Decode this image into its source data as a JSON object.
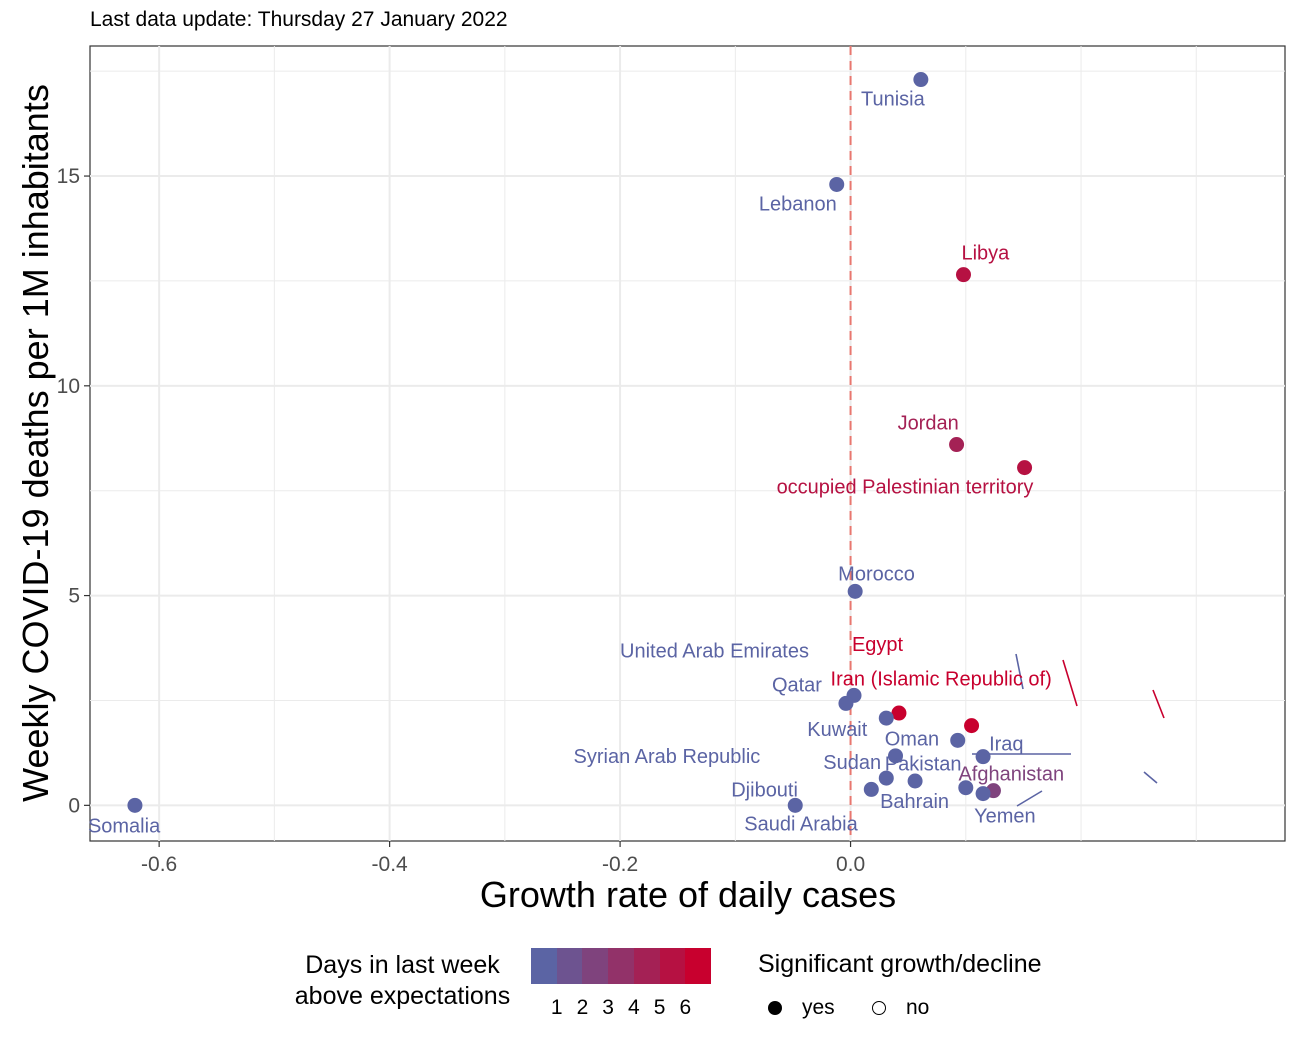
{
  "subtitle": "Last data update: Thursday 27 January 2022",
  "chart_data": {
    "type": "scatter",
    "xlabel": "Growth rate of daily cases",
    "ylabel": "Weekly COVID-19 deaths per 1M inhabitants",
    "xlim": [
      -0.66,
      0.377
    ],
    "ylim": [
      -0.85,
      18.1
    ],
    "x_ticks": [
      -0.6,
      -0.4,
      -0.2,
      0.0
    ],
    "x_tick_labels": [
      "-0.6",
      "-0.4",
      "-0.2",
      "0.0"
    ],
    "y_ticks": [
      0,
      5,
      10,
      15
    ],
    "y_tick_labels": [
      "0",
      "5",
      "10",
      "15"
    ],
    "reference_line": {
      "x": 0.0,
      "color": "#e8776f",
      "style": "dashed"
    },
    "grid": true,
    "points": [
      {
        "label": "Tunisia",
        "x": 0.061,
        "y": 17.3,
        "days": 0,
        "significant": "yes"
      },
      {
        "label": "Lebanon",
        "x": -0.012,
        "y": 14.8,
        "days": 0,
        "significant": "yes"
      },
      {
        "label": "Libya",
        "x": 0.098,
        "y": 12.65,
        "days": 5,
        "significant": "yes"
      },
      {
        "label": "Jordan",
        "x": 0.092,
        "y": 8.6,
        "days": 4,
        "significant": "yes"
      },
      {
        "label": "occupied Palestinian territory",
        "x": 0.151,
        "y": 8.05,
        "days": 5,
        "significant": "yes"
      },
      {
        "label": "Morocco",
        "x": 0.004,
        "y": 5.1,
        "days": 0,
        "significant": "yes"
      },
      {
        "label": "United Arab Emirates",
        "x": 0.003,
        "y": 2.62,
        "days": 0,
        "significant": "yes"
      },
      {
        "label": "Qatar",
        "x": -0.004,
        "y": 2.43,
        "days": 0,
        "significant": "yes"
      },
      {
        "label": "Egypt",
        "x": 0.042,
        "y": 2.2,
        "days": 6,
        "significant": "yes"
      },
      {
        "label": "Iran (Islamic Republic of)",
        "x": 0.105,
        "y": 1.9,
        "days": 6,
        "significant": "yes"
      },
      {
        "label": "Kuwait",
        "x": 0.031,
        "y": 2.08,
        "days": 0,
        "significant": "yes"
      },
      {
        "label": "Oman",
        "x": 0.093,
        "y": 1.55,
        "days": 0,
        "significant": "yes"
      },
      {
        "label": "Iraq",
        "x": 0.115,
        "y": 1.16,
        "days": 0,
        "significant": "yes"
      },
      {
        "label": "Syrian Arab Republic",
        "x": 0.039,
        "y": 1.18,
        "days": 0,
        "significant": "yes"
      },
      {
        "label": "Sudan",
        "x": 0.031,
        "y": 0.65,
        "days": 0,
        "significant": "yes"
      },
      {
        "label": "Pakistan",
        "x": 0.1,
        "y": 0.42,
        "days": 0,
        "significant": "yes"
      },
      {
        "label": "Afghanistan",
        "x": 0.124,
        "y": 0.35,
        "days": 2,
        "significant": "yes"
      },
      {
        "label": "Bahrain",
        "x": 0.056,
        "y": 0.58,
        "days": 0,
        "significant": "yes"
      },
      {
        "label": "Yemen",
        "x": 0.115,
        "y": 0.28,
        "days": 0,
        "significant": "yes"
      },
      {
        "label": "Djibouti",
        "x": -0.048,
        "y": 0.0,
        "days": 0,
        "significant": "yes"
      },
      {
        "label": "Saudi Arabia",
        "x": 0.018,
        "y": 0.38,
        "days": 0,
        "significant": "yes"
      },
      {
        "label": "Somalia",
        "x": -0.621,
        "y": 0.0,
        "days": 0,
        "significant": "yes"
      }
    ],
    "legend": {
      "color_title": "Days in last week above expectations",
      "color_ticks": [
        "1",
        "2",
        "3",
        "4",
        "5",
        "6"
      ],
      "color_low": "#5b64a4",
      "color_high": "#c8002e",
      "shape_title": "Significant growth/decline",
      "shape_entries": [
        "yes",
        "no"
      ],
      "placement": "bottom"
    }
  }
}
